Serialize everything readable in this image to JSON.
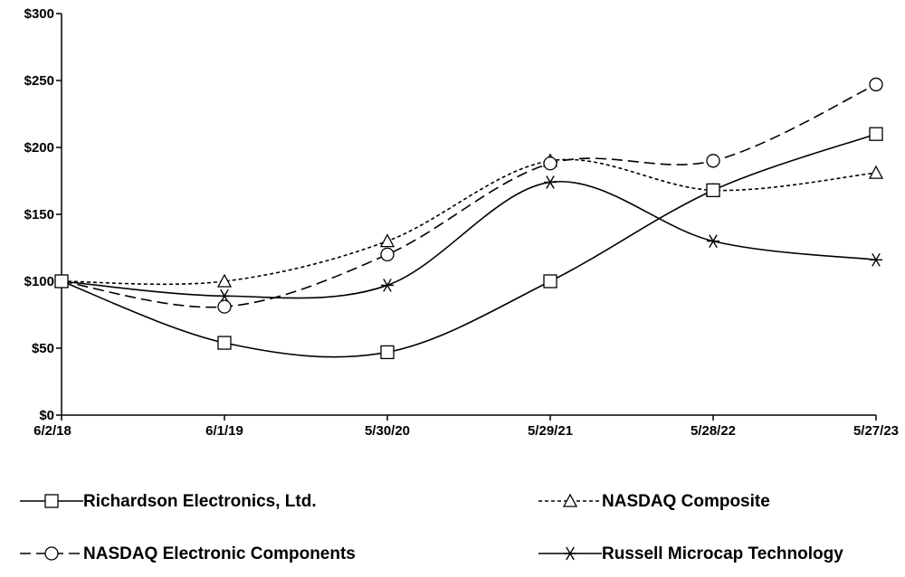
{
  "chart_data": {
    "type": "line",
    "x": [
      "6/2/18",
      "6/1/19",
      "5/30/20",
      "5/29/21",
      "5/28/22",
      "5/27/23"
    ],
    "ylim": [
      0,
      300
    ],
    "yticks": [
      0,
      50,
      100,
      150,
      200,
      250,
      300
    ],
    "ytick_labels": [
      "$0",
      "$50",
      "$100",
      "$150",
      "$200",
      "$250",
      "$300"
    ],
    "grid": false,
    "legend_position": "bottom",
    "series": [
      {
        "name": "Richardson Electronics, Ltd.",
        "values": [
          100,
          54,
          47,
          100,
          168,
          210
        ],
        "dash": "solid",
        "marker": "square"
      },
      {
        "name": "NASDAQ Composite",
        "values": [
          100,
          100,
          130,
          190,
          168,
          181
        ],
        "dash": "dotted",
        "marker": "triangle"
      },
      {
        "name": "NASDAQ Electronic Components",
        "values": [
          100,
          81,
          120,
          188,
          190,
          247
        ],
        "dash": "dashed",
        "marker": "circle"
      },
      {
        "name": "Russell Microcap Technology",
        "values": [
          100,
          89,
          97,
          174,
          130,
          116
        ],
        "dash": "solid",
        "marker": "asterisk"
      }
    ]
  }
}
